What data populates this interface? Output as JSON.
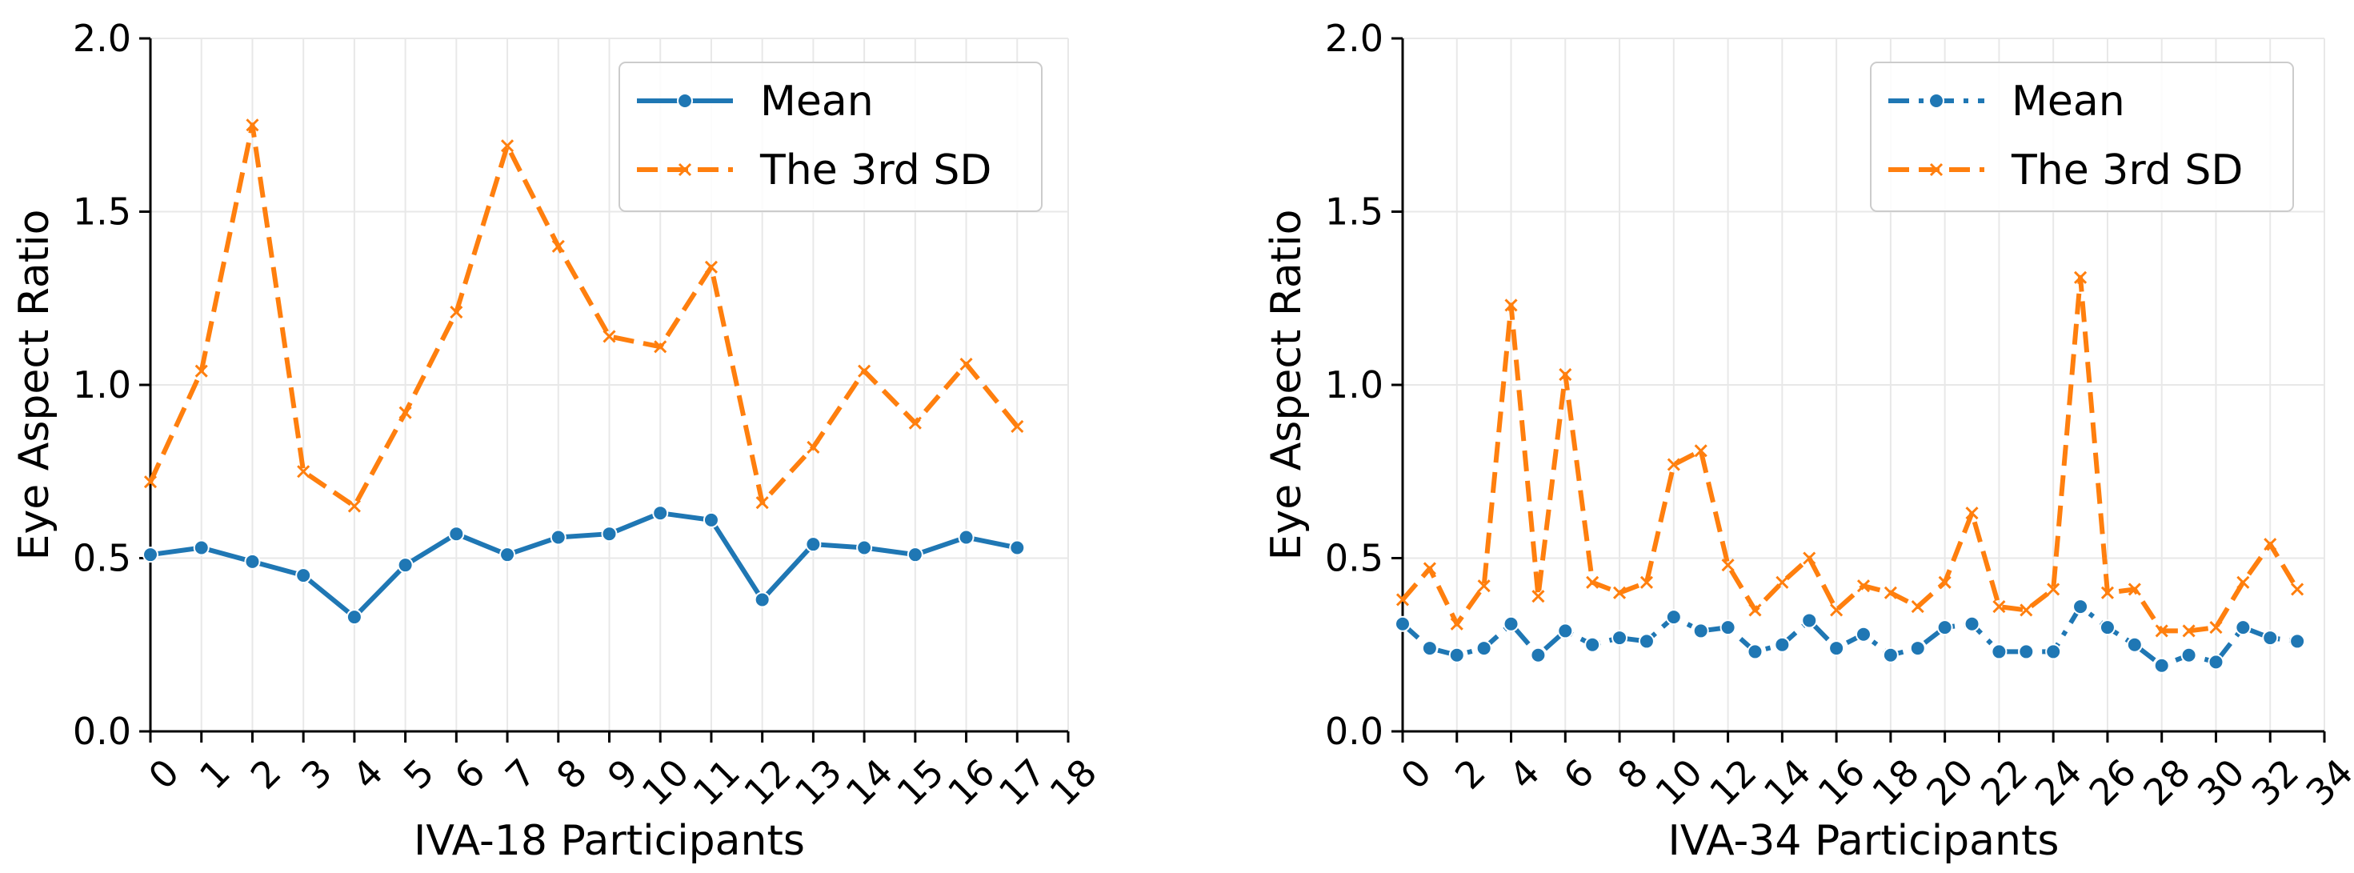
{
  "chart_data": [
    {
      "type": "line",
      "xlabel": "IVA-18 Participants",
      "ylabel": "Eye Aspect Ratio",
      "xlim": [
        0,
        18
      ],
      "ylim": [
        0,
        2.0
      ],
      "xticks": [
        "0",
        "1",
        "2",
        "3",
        "4",
        "5",
        "6",
        "7",
        "8",
        "9",
        "10",
        "11",
        "12",
        "13",
        "14",
        "15",
        "16",
        "17",
        "18"
      ],
      "yticks": [
        "0.0",
        "0.5",
        "1.0",
        "1.5",
        "2.0"
      ],
      "legend_position": "top-right",
      "grid": true,
      "x": [
        0,
        1,
        2,
        3,
        4,
        5,
        6,
        7,
        8,
        9,
        10,
        11,
        12,
        13,
        14,
        15,
        16,
        17
      ],
      "series": [
        {
          "name": "Mean",
          "color": "#1f77b4",
          "marker": "circle",
          "linestyle": "solid",
          "values": [
            0.51,
            0.53,
            0.49,
            0.45,
            0.33,
            0.48,
            0.57,
            0.51,
            0.56,
            0.57,
            0.63,
            0.61,
            0.38,
            0.54,
            0.53,
            0.51,
            0.56,
            0.53
          ]
        },
        {
          "name": "The 3rd SD",
          "color": "#ff7f0e",
          "marker": "x",
          "linestyle": "dashed",
          "values": [
            0.72,
            1.04,
            1.75,
            0.75,
            0.65,
            0.92,
            1.21,
            1.69,
            1.4,
            1.14,
            1.11,
            1.34,
            0.66,
            0.82,
            1.04,
            0.89,
            1.06,
            0.88
          ]
        }
      ]
    },
    {
      "type": "line",
      "xlabel": "IVA-34 Participants",
      "ylabel": "Eye Aspect Ratio",
      "xlim": [
        0,
        34
      ],
      "ylim": [
        0,
        2.0
      ],
      "xticks": [
        "0",
        "2",
        "4",
        "6",
        "8",
        "10",
        "12",
        "14",
        "16",
        "18",
        "20",
        "22",
        "24",
        "26",
        "28",
        "30",
        "32",
        "34"
      ],
      "yticks": [
        "0.0",
        "0.5",
        "1.0",
        "1.5",
        "2.0"
      ],
      "legend_position": "top-right",
      "grid": true,
      "x": [
        0,
        1,
        2,
        3,
        4,
        5,
        6,
        7,
        8,
        9,
        10,
        11,
        12,
        13,
        14,
        15,
        16,
        17,
        18,
        19,
        20,
        21,
        22,
        23,
        24,
        25,
        26,
        27,
        28,
        29,
        30,
        31,
        32,
        33
      ],
      "series": [
        {
          "name": "Mean",
          "color": "#1f77b4",
          "marker": "circle",
          "linestyle": "dashdot",
          "values": [
            0.31,
            0.24,
            0.22,
            0.24,
            0.31,
            0.22,
            0.29,
            0.25,
            0.27,
            0.26,
            0.33,
            0.29,
            0.3,
            0.23,
            0.25,
            0.32,
            0.24,
            0.28,
            0.22,
            0.24,
            0.3,
            0.31,
            0.23,
            0.23,
            0.23,
            0.36,
            0.3,
            0.25,
            0.19,
            0.22,
            0.2,
            0.3,
            0.27,
            0.26
          ]
        },
        {
          "name": "The 3rd SD",
          "color": "#ff7f0e",
          "marker": "x",
          "linestyle": "dashed",
          "values": [
            0.38,
            0.47,
            0.31,
            0.42,
            1.23,
            0.39,
            1.03,
            0.43,
            0.4,
            0.43,
            0.77,
            0.81,
            0.48,
            0.35,
            0.43,
            0.5,
            0.35,
            0.42,
            0.4,
            0.36,
            0.43,
            0.63,
            0.36,
            0.35,
            0.41,
            1.31,
            0.4,
            0.41,
            0.29,
            0.29,
            0.3,
            0.43,
            0.54,
            0.41
          ]
        }
      ]
    }
  ]
}
